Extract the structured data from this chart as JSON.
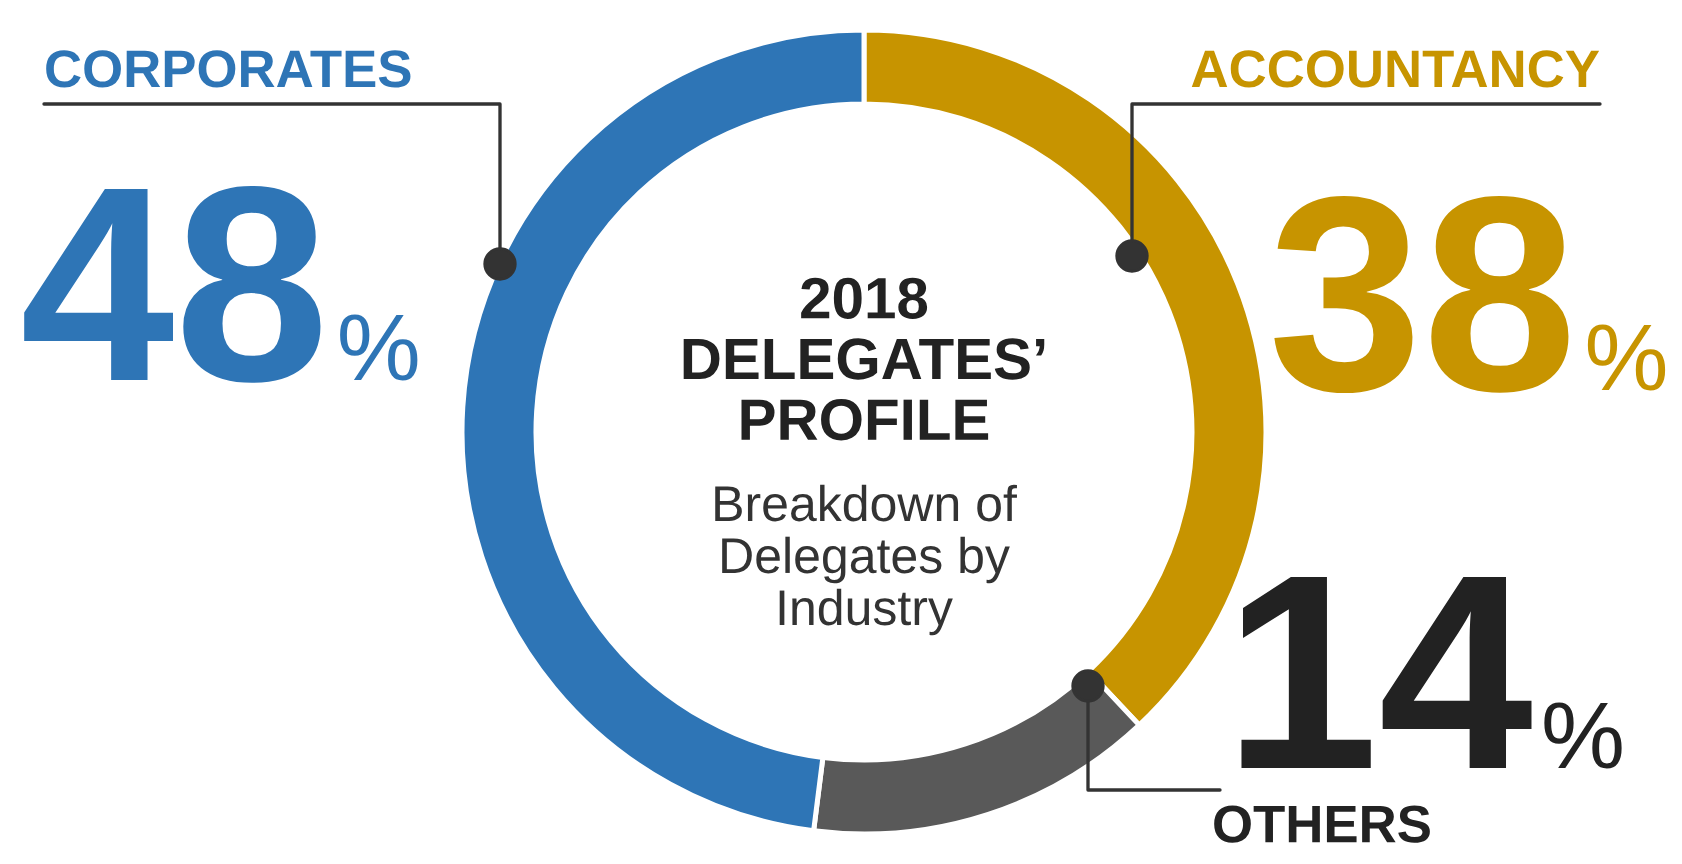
{
  "chart_data": {
    "type": "donut",
    "title": "2018 DELEGATES’ PROFILE",
    "subtitle": "Breakdown of Delegates by Industry",
    "categories": [
      "ACCOUNTANCY",
      "OTHERS",
      "CORPORATES"
    ],
    "values": [
      38,
      14,
      48
    ],
    "colors": [
      "#c79400",
      "#595959",
      "#2e75b6"
    ],
    "value_labels": [
      "38%",
      "14%",
      "48%"
    ],
    "legend": false
  }
}
